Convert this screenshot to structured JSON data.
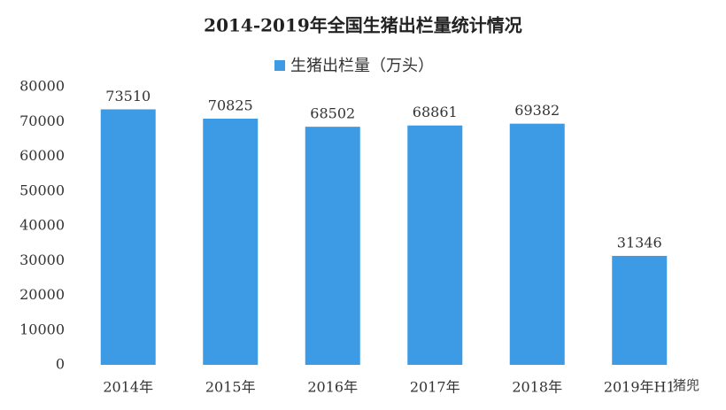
{
  "chart_data": {
    "type": "bar",
    "title": "2014-2019年全国生猪出栏量统计情况",
    "series": [
      {
        "name": "生猪出栏量（万头）",
        "color": "#3d9be6",
        "values": [
          73510,
          70825,
          68502,
          68861,
          69382,
          31346
        ]
      }
    ],
    "categories": [
      "2014年",
      "2015年",
      "2016年",
      "2017年",
      "2018年",
      "2019年H1"
    ],
    "ylim": [
      0,
      80000
    ],
    "yticks": [
      0,
      10000,
      20000,
      30000,
      40000,
      50000,
      60000,
      70000,
      80000
    ],
    "grid": false,
    "legend": "top",
    "watermark": "猪兜"
  }
}
